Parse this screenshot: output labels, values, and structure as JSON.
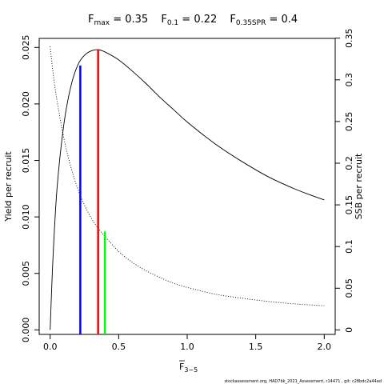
{
  "chart_data": {
    "type": "line",
    "title_parts": {
      "fmax_label": "F",
      "fmax_sub": "max",
      "fmax_value": " = 0.35",
      "f01_label": "F",
      "f01_sub": "0.1",
      "f01_value": " = 0.22",
      "fspr_label": "F",
      "fspr_sub": "0.35SPR",
      "fspr_value": " = 0.4"
    },
    "xlabel": "F",
    "xlabel_sub": "3−5",
    "ylabel_left": "Yield per recruit",
    "ylabel_right": "SSB per recruit",
    "xlim": [
      -0.08,
      2.08
    ],
    "ylim_left": [
      -0.0004,
      0.0258
    ],
    "ylim_right": [
      -0.0054,
      0.3497
    ],
    "x_ticks": [
      0,
      0.5,
      1,
      1.5,
      2
    ],
    "x_tick_labels": [
      "0.0",
      "0.5",
      "1.0",
      "1.5",
      "2.0"
    ],
    "y_left_ticks": [
      0,
      0.005,
      0.01,
      0.015,
      0.02,
      0.025
    ],
    "y_left_tick_labels": [
      "0.000",
      "0.005",
      "0.010",
      "0.015",
      "0.020",
      "0.025"
    ],
    "y_right_ticks": [
      0,
      0.05,
      0.1,
      0.15,
      0.2,
      0.25,
      0.3,
      0.35
    ],
    "y_right_tick_labels": [
      "0",
      "0.05",
      "0.1",
      "0.15",
      "0.2",
      "0.25",
      "0.3",
      "0.35"
    ],
    "series": [
      {
        "axis": "left",
        "style": "solid",
        "color": "#000000",
        "x": [
          0,
          0.02,
          0.05,
          0.1,
          0.15,
          0.2,
          0.25,
          0.3,
          0.35,
          0.4,
          0.5,
          0.6,
          0.7,
          0.8,
          0.9,
          1.0,
          1.2,
          1.4,
          1.6,
          1.8,
          2.0
        ],
        "y": [
          0,
          0.0062,
          0.0125,
          0.0182,
          0.0215,
          0.0234,
          0.0243,
          0.0247,
          0.0248,
          0.0246,
          0.0239,
          0.0229,
          0.0218,
          0.0206,
          0.0195,
          0.0184,
          0.0165,
          0.0149,
          0.0135,
          0.0124,
          0.0115
        ]
      },
      {
        "axis": "right",
        "style": "dotted",
        "color": "#000000",
        "x": [
          0,
          0.02,
          0.05,
          0.1,
          0.15,
          0.2,
          0.25,
          0.3,
          0.35,
          0.4,
          0.5,
          0.6,
          0.7,
          0.8,
          0.9,
          1.0,
          1.2,
          1.4,
          1.6,
          1.8,
          2.0
        ],
        "y": [
          0.34,
          0.31,
          0.275,
          0.23,
          0.196,
          0.17,
          0.15,
          0.134,
          0.122,
          0.112,
          0.094,
          0.081,
          0.071,
          0.063,
          0.056,
          0.051,
          0.043,
          0.038,
          0.034,
          0.031,
          0.029
        ]
      }
    ],
    "reference_lines": [
      {
        "name": "F0.1",
        "x": 0.22,
        "color": "#0000ff",
        "axis": "left",
        "y_top": 0.0234
      },
      {
        "name": "Fmax",
        "x": 0.35,
        "color": "#ff0000",
        "axis": "left",
        "y_top": 0.0248
      },
      {
        "name": "F0.35SPR",
        "x": 0.4,
        "color": "#00ff00",
        "axis": "right",
        "y_top": 0.118
      }
    ],
    "footer": "stockassessment.org, HAD7bk_2021_Assessment, r14471 , git: c28bdc2a44ad"
  }
}
